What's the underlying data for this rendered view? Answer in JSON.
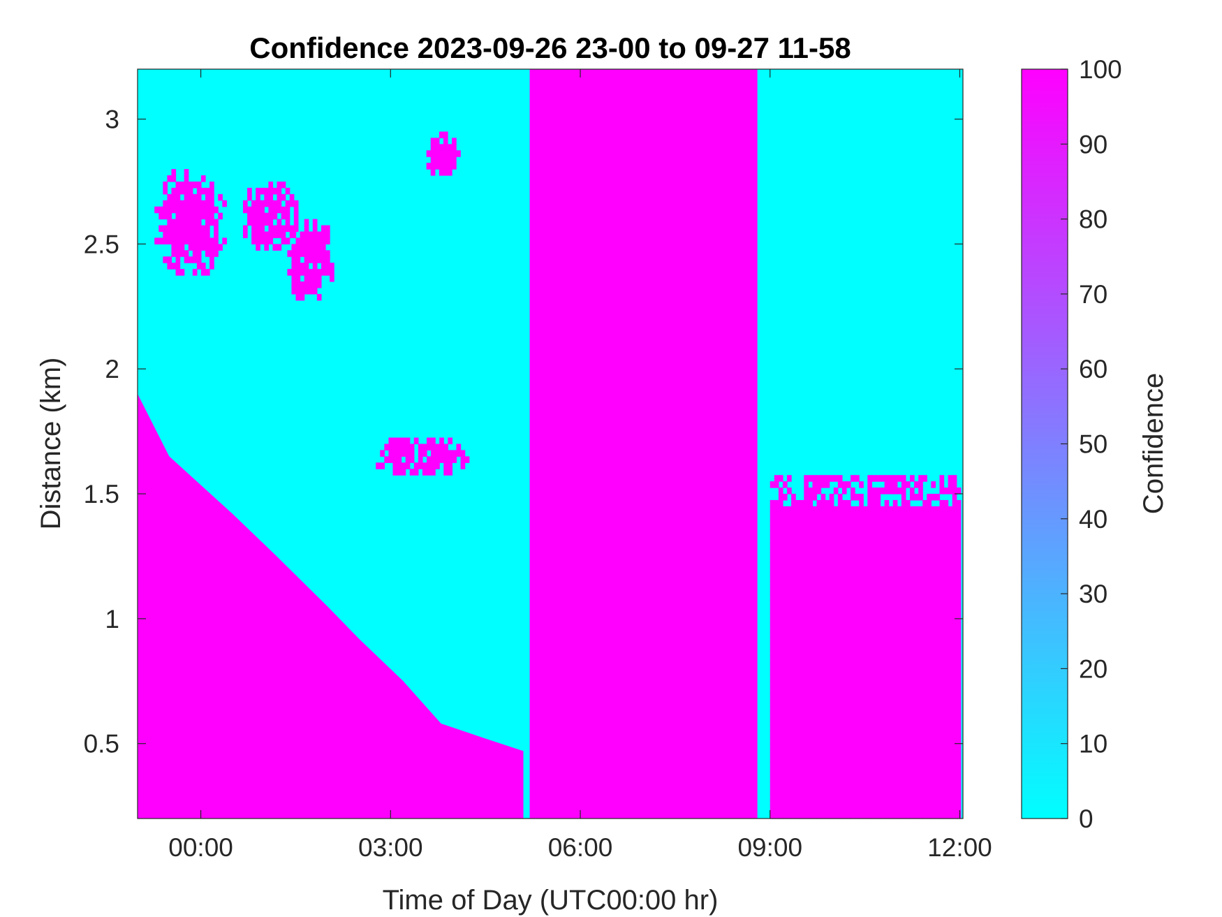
{
  "chart_data": {
    "type": "heatmap",
    "title": "Confidence 2023-09-26 23-00 to 09-27 11-58",
    "xlabel": "Time of Day (UTC00:00 hr)",
    "ylabel": "Distance (km)",
    "x_unit": "hours since 00:00 UTC",
    "xlim": [
      -1,
      12.05
    ],
    "ylim": [
      0.2,
      3.2
    ],
    "x_ticks": [
      {
        "value": 0,
        "label": "00:00"
      },
      {
        "value": 3,
        "label": "03:00"
      },
      {
        "value": 6,
        "label": "06:00"
      },
      {
        "value": 9,
        "label": "09:00"
      },
      {
        "value": 12,
        "label": "12:00"
      }
    ],
    "y_ticks": [
      {
        "value": 0.5,
        "label": "0.5"
      },
      {
        "value": 1,
        "label": "1"
      },
      {
        "value": 1.5,
        "label": "1.5"
      },
      {
        "value": 2,
        "label": "2"
      },
      {
        "value": 2.5,
        "label": "2.5"
      },
      {
        "value": 3,
        "label": "3"
      }
    ],
    "colorbar": {
      "label": "Confidence",
      "range": [
        0,
        100
      ],
      "ticks": [
        "0",
        "10",
        "20",
        "30",
        "40",
        "50",
        "60",
        "70",
        "80",
        "90",
        "100"
      ],
      "colormap": "cool",
      "low_color": "#00FFFF",
      "high_color": "#FF00FF"
    },
    "grid": false,
    "cell_values": {
      "low": 0,
      "high": 100
    },
    "boundary_high_confidence_below_km": [
      {
        "x": -1.0,
        "y": 1.9
      },
      {
        "x": -0.5,
        "y": 1.65
      },
      {
        "x": 0.5,
        "y": 1.42
      },
      {
        "x": 1.2,
        "y": 1.25
      },
      {
        "x": 2.0,
        "y": 1.05
      },
      {
        "x": 2.5,
        "y": 0.92
      },
      {
        "x": 3.2,
        "y": 0.75
      },
      {
        "x": 3.8,
        "y": 0.58
      },
      {
        "x": 4.5,
        "y": 0.52
      },
      {
        "x": 5.1,
        "y": 0.47
      }
    ],
    "full_high_intervals_hours": [
      [
        5.2,
        8.8
      ]
    ],
    "high_regions": [
      {
        "x": [
          -0.8,
          0.4
        ],
        "y": [
          2.35,
          2.8
        ]
      },
      {
        "x": [
          0.6,
          1.5
        ],
        "y": [
          2.45,
          2.75
        ]
      },
      {
        "x": [
          1.3,
          2.1
        ],
        "y": [
          2.25,
          2.6
        ]
      },
      {
        "x": [
          3.5,
          4.1
        ],
        "y": [
          2.75,
          2.93
        ]
      },
      {
        "x": [
          2.7,
          4.2
        ],
        "y": [
          1.55,
          1.72
        ]
      },
      {
        "x": [
          9.0,
          12.0
        ],
        "y": [
          0.2,
          1.55
        ]
      }
    ]
  }
}
